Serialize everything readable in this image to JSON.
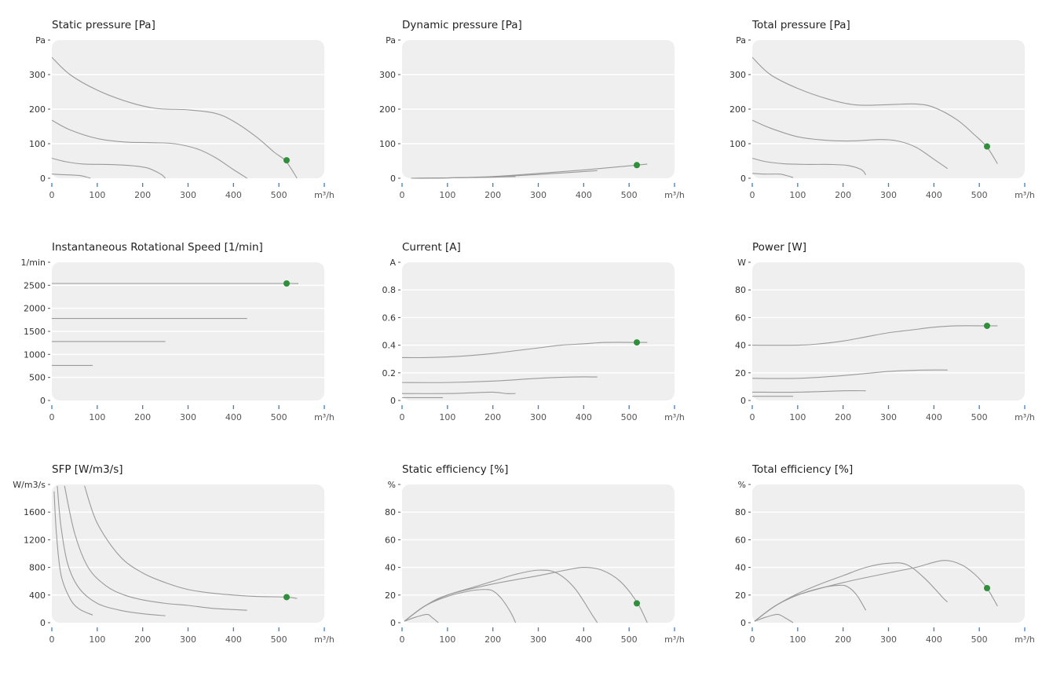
{
  "colors": {
    "plot_bg": "#efefef",
    "grid": "#ffffff",
    "curve": "#9a9a9a",
    "point": "#2f8f3a",
    "xtick": "#3a7fc4",
    "text": "#333333"
  },
  "chart_data": [
    {
      "type": "line",
      "title": "Static pressure [Pa]",
      "ylabel": "Pa",
      "xlabel": "m³/h",
      "xlim": [
        0,
        600
      ],
      "ylim": [
        0,
        400
      ],
      "xticks": [
        0,
        100,
        200,
        300,
        400,
        500
      ],
      "yticks": [
        0,
        100,
        200,
        300
      ],
      "grid": true,
      "series": [
        {
          "x": [
            0,
            40,
            100,
            170,
            230,
            300,
            360,
            400,
            450,
            490,
            515,
            540
          ],
          "y": [
            350,
            300,
            255,
            220,
            202,
            198,
            188,
            165,
            120,
            75,
            50,
            0
          ]
        },
        {
          "x": [
            0,
            40,
            100,
            160,
            220,
            270,
            320,
            360,
            400,
            430
          ],
          "y": [
            168,
            140,
            115,
            105,
            103,
            100,
            85,
            60,
            25,
            0
          ]
        },
        {
          "x": [
            0,
            30,
            70,
            120,
            170,
            210,
            240,
            250
          ],
          "y": [
            58,
            48,
            41,
            40,
            37,
            30,
            12,
            0
          ]
        },
        {
          "x": [
            0,
            30,
            60,
            75,
            85
          ],
          "y": [
            12,
            10,
            8,
            4,
            0
          ]
        }
      ],
      "operating_point": {
        "x": 517,
        "y": 52
      }
    },
    {
      "type": "line",
      "title": "Dynamic pressure [Pa]",
      "ylabel": "Pa",
      "xlabel": "m³/h",
      "xlim": [
        0,
        600
      ],
      "ylim": [
        0,
        400
      ],
      "xticks": [
        0,
        100,
        200,
        300,
        400,
        500
      ],
      "yticks": [
        0,
        100,
        200,
        300
      ],
      "grid": true,
      "series": [
        {
          "x": [
            20,
            100,
            200,
            300,
            400,
            517,
            540
          ],
          "y": [
            0,
            1,
            5,
            14,
            24,
            38,
            41
          ]
        },
        {
          "x": [
            20,
            100,
            200,
            300,
            430
          ],
          "y": [
            0,
            1,
            4,
            11,
            22
          ]
        },
        {
          "x": [
            20,
            100,
            200,
            250
          ],
          "y": [
            0,
            1,
            3,
            5
          ]
        },
        {
          "x": [
            20,
            60,
            90
          ],
          "y": [
            0,
            0,
            1
          ]
        }
      ],
      "operating_point": {
        "x": 517,
        "y": 38
      }
    },
    {
      "type": "line",
      "title": "Total pressure [Pa]",
      "ylabel": "Pa",
      "xlabel": "m³/h",
      "xlim": [
        0,
        600
      ],
      "ylim": [
        0,
        400
      ],
      "xticks": [
        0,
        100,
        200,
        300,
        400,
        500
      ],
      "yticks": [
        0,
        100,
        200,
        300
      ],
      "grid": true,
      "series": [
        {
          "x": [
            0,
            40,
            100,
            170,
            230,
            300,
            360,
            400,
            450,
            490,
            517,
            540
          ],
          "y": [
            350,
            300,
            260,
            228,
            212,
            213,
            215,
            205,
            170,
            125,
            90,
            42
          ]
        },
        {
          "x": [
            0,
            40,
            100,
            160,
            220,
            280,
            320,
            360,
            400,
            430
          ],
          "y": [
            168,
            145,
            120,
            110,
            108,
            112,
            108,
            90,
            55,
            28
          ]
        },
        {
          "x": [
            0,
            30,
            70,
            120,
            170,
            210,
            240,
            250
          ],
          "y": [
            58,
            48,
            42,
            40,
            40,
            37,
            25,
            10
          ]
        },
        {
          "x": [
            0,
            30,
            60,
            75,
            90
          ],
          "y": [
            14,
            12,
            12,
            8,
            2
          ]
        }
      ],
      "operating_point": {
        "x": 517,
        "y": 92
      }
    },
    {
      "type": "line",
      "title": "Instantaneous Rotational Speed [1/min]",
      "ylabel": "1/min",
      "xlabel": "m³/h",
      "xlim": [
        0,
        600
      ],
      "ylim": [
        0,
        3000
      ],
      "xticks": [
        0,
        100,
        200,
        300,
        400,
        500
      ],
      "yticks": [
        0,
        500,
        1000,
        1500,
        2000,
        2500
      ],
      "grid": true,
      "series": [
        {
          "x": [
            0,
            300,
            517,
            540
          ],
          "y": [
            2540,
            2540,
            2540,
            2535
          ]
        },
        {
          "x": [
            0,
            430
          ],
          "y": [
            1780,
            1780
          ]
        },
        {
          "x": [
            0,
            250
          ],
          "y": [
            1280,
            1280
          ]
        },
        {
          "x": [
            0,
            90
          ],
          "y": [
            760,
            760
          ]
        }
      ],
      "operating_point": {
        "x": 517,
        "y": 2540
      }
    },
    {
      "type": "line",
      "title": "Current [A]",
      "ylabel": "A",
      "xlabel": "m³/h",
      "xlim": [
        0,
        600
      ],
      "ylim": [
        0,
        1.0
      ],
      "xticks": [
        0,
        100,
        200,
        300,
        400,
        500
      ],
      "yticks": [
        0,
        0.2,
        0.4,
        0.6,
        0.8
      ],
      "grid": true,
      "series": [
        {
          "x": [
            0,
            50,
            100,
            150,
            200,
            250,
            300,
            350,
            400,
            450,
            517,
            540
          ],
          "y": [
            0.31,
            0.31,
            0.315,
            0.325,
            0.34,
            0.36,
            0.38,
            0.4,
            0.41,
            0.42,
            0.42,
            0.42
          ]
        },
        {
          "x": [
            0,
            100,
            200,
            300,
            380,
            430
          ],
          "y": [
            0.13,
            0.13,
            0.14,
            0.16,
            0.17,
            0.17
          ]
        },
        {
          "x": [
            0,
            100,
            150,
            200,
            230,
            250
          ],
          "y": [
            0.05,
            0.05,
            0.055,
            0.06,
            0.05,
            0.05
          ]
        },
        {
          "x": [
            0,
            30,
            60,
            90
          ],
          "y": [
            0.02,
            0.02,
            0.02,
            0.02
          ]
        }
      ],
      "operating_point": {
        "x": 517,
        "y": 0.42
      }
    },
    {
      "type": "line",
      "title": "Power [W]",
      "ylabel": "W",
      "xlabel": "m³/h",
      "xlim": [
        0,
        600
      ],
      "ylim": [
        0,
        100
      ],
      "xticks": [
        0,
        100,
        200,
        300,
        400,
        500
      ],
      "yticks": [
        0,
        20,
        40,
        60,
        80
      ],
      "grid": true,
      "series": [
        {
          "x": [
            0,
            100,
            150,
            200,
            250,
            300,
            350,
            400,
            450,
            517,
            540
          ],
          "y": [
            40,
            40,
            41,
            43,
            46,
            49,
            51,
            53,
            54,
            54,
            54
          ]
        },
        {
          "x": [
            0,
            100,
            200,
            300,
            380,
            430
          ],
          "y": [
            16,
            16,
            18,
            21,
            22,
            22
          ]
        },
        {
          "x": [
            0,
            100,
            200,
            250
          ],
          "y": [
            6,
            6,
            7,
            7
          ]
        },
        {
          "x": [
            0,
            40,
            90
          ],
          "y": [
            3,
            3,
            3
          ]
        }
      ],
      "operating_point": {
        "x": 517,
        "y": 54
      }
    },
    {
      "type": "line",
      "title": "SFP [W/m3/s]",
      "ylabel": "W/m3/s",
      "xlabel": "m³/h",
      "xlim": [
        0,
        600
      ],
      "ylim": [
        0,
        2000
      ],
      "xticks": [
        0,
        100,
        200,
        300,
        400,
        500
      ],
      "yticks": [
        0,
        400,
        800,
        1200,
        1600
      ],
      "grid": true,
      "series": [
        {
          "x": [
            72,
            100,
            150,
            200,
            250,
            300,
            350,
            400,
            450,
            517,
            540
          ],
          "y": [
            1980,
            1440,
            960,
            720,
            580,
            480,
            430,
            400,
            380,
            370,
            350
          ]
        },
        {
          "x": [
            28,
            50,
            80,
            120,
            160,
            200,
            250,
            300,
            350,
            400,
            430
          ],
          "y": [
            1980,
            1300,
            800,
            530,
            400,
            330,
            280,
            250,
            210,
            190,
            180
          ]
        },
        {
          "x": [
            12,
            20,
            35,
            60,
            100,
            150,
            200,
            250
          ],
          "y": [
            1980,
            1400,
            850,
            500,
            280,
            180,
            130,
            100
          ]
        },
        {
          "x": [
            5,
            10,
            20,
            40,
            60,
            90
          ],
          "y": [
            1900,
            1300,
            700,
            350,
            200,
            110
          ]
        }
      ],
      "operating_point": {
        "x": 517,
        "y": 370
      }
    },
    {
      "type": "line",
      "title": "Static efficiency [%]",
      "ylabel": "%",
      "xlabel": "m³/h",
      "xlim": [
        0,
        600
      ],
      "ylim": [
        0,
        100
      ],
      "xticks": [
        0,
        100,
        200,
        300,
        400,
        500
      ],
      "yticks": [
        0,
        20,
        40,
        60,
        80
      ],
      "grid": true,
      "series": [
        {
          "x": [
            5,
            50,
            100,
            200,
            300,
            360,
            400,
            440,
            480,
            517,
            540
          ],
          "y": [
            1,
            12,
            20,
            28,
            34,
            38,
            40,
            38,
            30,
            15,
            0
          ]
        },
        {
          "x": [
            5,
            50,
            100,
            150,
            200,
            250,
            300,
            340,
            380,
            420,
            430
          ],
          "y": [
            1,
            12,
            20,
            25,
            30,
            35,
            38,
            36,
            25,
            5,
            0
          ]
        },
        {
          "x": [
            5,
            50,
            100,
            150,
            180,
            200,
            220,
            240,
            250
          ],
          "y": [
            1,
            12,
            19,
            23,
            24,
            23,
            17,
            7,
            0
          ]
        },
        {
          "x": [
            5,
            30,
            55,
            65,
            80
          ],
          "y": [
            1,
            4,
            6,
            4,
            0
          ]
        }
      ],
      "operating_point": {
        "x": 517,
        "y": 14
      }
    },
    {
      "type": "line",
      "title": "Total efficiency [%]",
      "ylabel": "%",
      "xlabel": "m³/h",
      "xlim": [
        0,
        600
      ],
      "ylim": [
        0,
        100
      ],
      "xticks": [
        0,
        100,
        200,
        300,
        400,
        500
      ],
      "yticks": [
        0,
        20,
        40,
        60,
        80
      ],
      "grid": true,
      "series": [
        {
          "x": [
            5,
            50,
            100,
            200,
            300,
            360,
            420,
            460,
            490,
            517,
            540
          ],
          "y": [
            1,
            12,
            20,
            29,
            36,
            40,
            45,
            42,
            35,
            25,
            12
          ]
        },
        {
          "x": [
            5,
            50,
            100,
            150,
            200,
            250,
            300,
            340,
            380,
            420,
            430
          ],
          "y": [
            1,
            12,
            21,
            28,
            34,
            40,
            43,
            42,
            32,
            18,
            15
          ]
        },
        {
          "x": [
            5,
            50,
            100,
            150,
            190,
            210,
            230,
            250
          ],
          "y": [
            1,
            12,
            20,
            25,
            27,
            26,
            20,
            9
          ]
        },
        {
          "x": [
            5,
            30,
            55,
            70,
            90
          ],
          "y": [
            1,
            4,
            6,
            4,
            0
          ]
        }
      ],
      "operating_point": {
        "x": 517,
        "y": 25
      }
    }
  ]
}
